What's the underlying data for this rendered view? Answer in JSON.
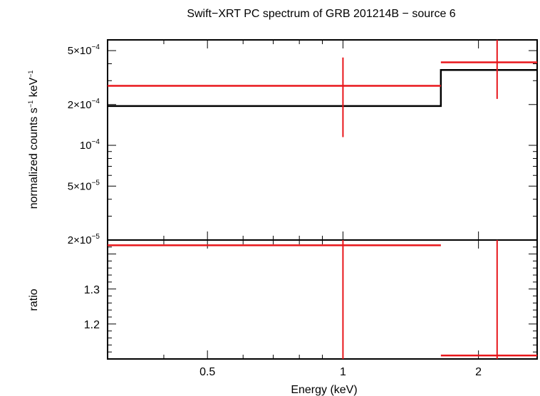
{
  "chart_data": [
    {
      "panel": "spectrum",
      "type": "line",
      "title": "Swift−XRT PC spectrum of GRB 201214B − source 6",
      "xlabel": "Energy (keV)",
      "ylabel_html": "normalized counts s<tspan dy='-6' font-size='9'>−1</tspan><tspan dy='6'> keV</tspan><tspan dy='-6' font-size='9'>−1</tspan>",
      "x_scale": "log",
      "y_scale": "log",
      "xlim": [
        0.3,
        2.7
      ],
      "ylim": [
        2e-05,
        0.0006
      ],
      "y_ticks": [
        {
          "value": 0.0005,
          "mant": "5",
          "exp": "−4"
        },
        {
          "value": 0.0002,
          "mant": "2",
          "exp": "−4"
        },
        {
          "value": 0.0001,
          "mant": "10",
          "exp": "−4"
        },
        {
          "value": 5e-05,
          "mant": "5",
          "exp": "−5"
        },
        {
          "value": 2e-05,
          "mant": "2",
          "exp": "−5"
        }
      ],
      "data_series": {
        "color": "#e8161b",
        "points": [
          {
            "x": 1.0,
            "xlo": 0.3,
            "xhi": 1.65,
            "y": 0.000275,
            "ylo": 0.000115,
            "yhi": 0.000445
          },
          {
            "x": 2.2,
            "xlo": 1.65,
            "xhi": 2.7,
            "y": 0.00041,
            "ylo": 0.00022,
            "yhi": 0.0006
          }
        ]
      },
      "model_series": {
        "color": "#000000",
        "steps": [
          {
            "xlo": 0.3,
            "xhi": 1.65,
            "y": 0.000195
          },
          {
            "xlo": 1.65,
            "xhi": 2.7,
            "y": 0.00036
          }
        ]
      }
    },
    {
      "panel": "ratio",
      "type": "scatter",
      "ylabel": "ratio",
      "xlabel": "Energy (keV)",
      "x_scale": "log",
      "xlim": [
        0.3,
        2.7
      ],
      "ylim": [
        1.1,
        1.44
      ],
      "y_ticks": [
        1.2,
        1.3
      ],
      "x_ticks": [
        {
          "value": 0.5,
          "label": "0.5"
        },
        {
          "value": 1,
          "label": "1"
        },
        {
          "value": 2,
          "label": "2"
        }
      ],
      "data_series": {
        "color": "#e8161b",
        "points": [
          {
            "x": 1.0,
            "xlo": 0.3,
            "xhi": 1.65,
            "y": 1.425,
            "ylo": 1.1,
            "yhi": 1.44
          },
          {
            "x": 2.2,
            "xlo": 1.65,
            "xhi": 2.7,
            "y": 1.11,
            "ylo": 1.1,
            "yhi": 1.44
          }
        ]
      }
    }
  ]
}
